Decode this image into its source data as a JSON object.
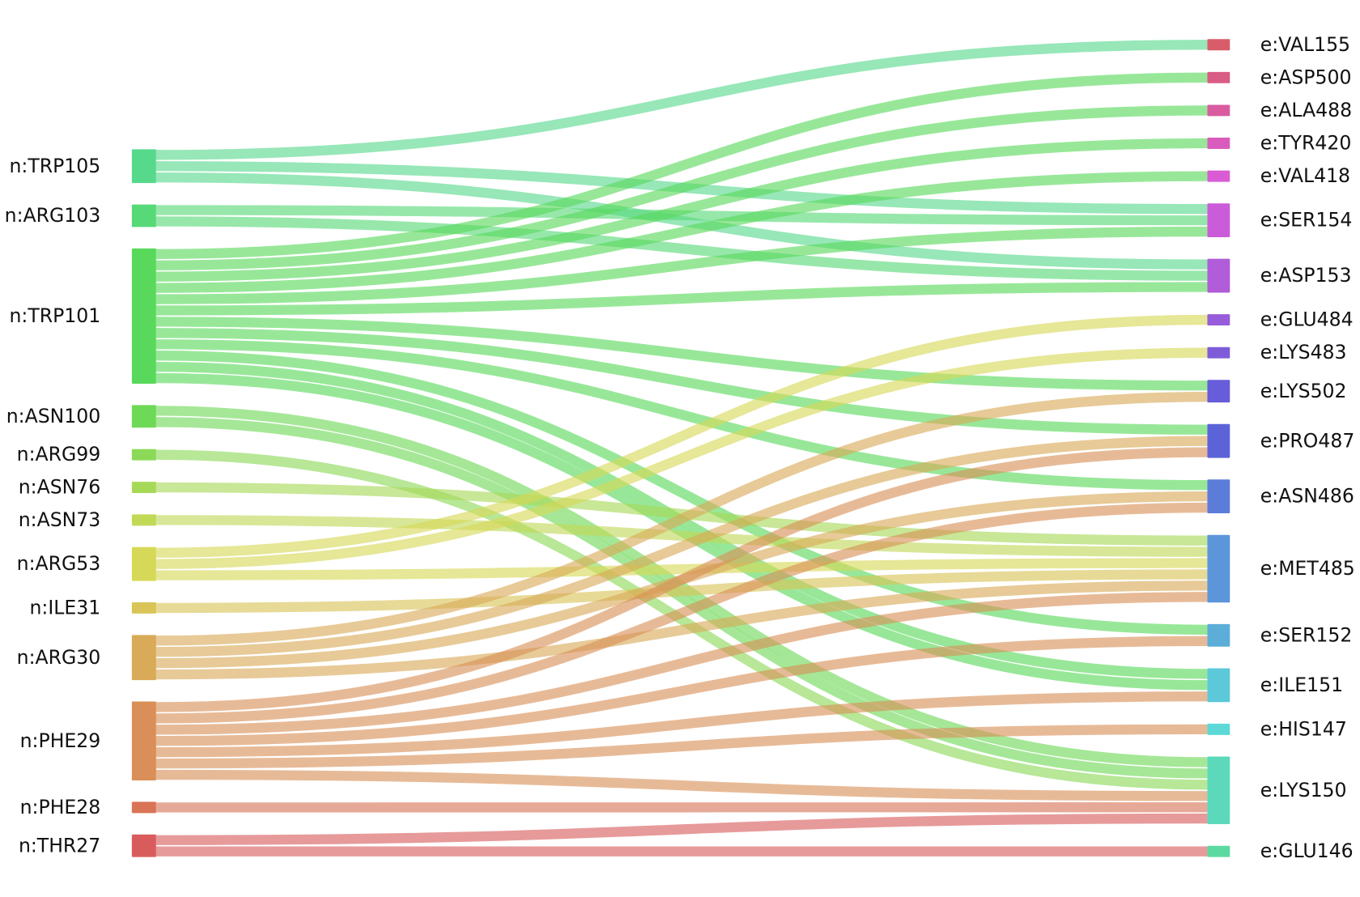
{
  "chart_data": {
    "type": "sankey",
    "nodes": [
      {
        "name": "n:TRP105",
        "color": "#57d98c"
      },
      {
        "name": "n:ARG103",
        "color": "#57d977"
      },
      {
        "name": "n:TRP101",
        "color": "#59d95b"
      },
      {
        "name": "n:ASN100",
        "color": "#6ed957"
      },
      {
        "name": "n:ARG99",
        "color": "#8bd957"
      },
      {
        "name": "n:ASN76",
        "color": "#a6d957"
      },
      {
        "name": "n:ASN73",
        "color": "#c0d957"
      },
      {
        "name": "n:ARG53",
        "color": "#d6d957"
      },
      {
        "name": "n:ILE31",
        "color": "#d9c457"
      },
      {
        "name": "n:ARG30",
        "color": "#d9aa57"
      },
      {
        "name": "n:PHE29",
        "color": "#d98f57"
      },
      {
        "name": "n:PHE28",
        "color": "#d97457"
      },
      {
        "name": "n:THR27",
        "color": "#d95c5c"
      },
      {
        "name": "e:VAL155",
        "color": "#d95c6a"
      },
      {
        "name": "e:ASP500",
        "color": "#d95c85"
      },
      {
        "name": "e:ALA488",
        "color": "#d95ca0"
      },
      {
        "name": "e:TYR420",
        "color": "#d95cbc"
      },
      {
        "name": "e:VAL418",
        "color": "#d95cd5"
      },
      {
        "name": "e:SER154",
        "color": "#cb5cd9"
      },
      {
        "name": "e:ASP153",
        "color": "#b15cd9"
      },
      {
        "name": "e:GLU484",
        "color": "#975cd9"
      },
      {
        "name": "e:LYS483",
        "color": "#7e5cd9"
      },
      {
        "name": "e:LYS502",
        "color": "#675cd9"
      },
      {
        "name": "e:PRO487",
        "color": "#5c63d9"
      },
      {
        "name": "e:ASN486",
        "color": "#5c7cd9"
      },
      {
        "name": "e:MET485",
        "color": "#5c95d9"
      },
      {
        "name": "e:SER152",
        "color": "#5caed9"
      },
      {
        "name": "e:ILE151",
        "color": "#5cc8d9"
      },
      {
        "name": "e:HIS147",
        "color": "#5cd9d6"
      },
      {
        "name": "e:LYS150",
        "color": "#5cd9bb"
      },
      {
        "name": "e:GLU146",
        "color": "#5cd9a1"
      }
    ],
    "links": [
      {
        "source": 0,
        "target": 13,
        "value": 1
      },
      {
        "source": 0,
        "target": 18,
        "value": 1
      },
      {
        "source": 0,
        "target": 19,
        "value": 1
      },
      {
        "source": 1,
        "target": 18,
        "value": 1
      },
      {
        "source": 1,
        "target": 19,
        "value": 1
      },
      {
        "source": 2,
        "target": 14,
        "value": 1
      },
      {
        "source": 2,
        "target": 15,
        "value": 1
      },
      {
        "source": 2,
        "target": 16,
        "value": 1
      },
      {
        "source": 2,
        "target": 17,
        "value": 1
      },
      {
        "source": 2,
        "target": 18,
        "value": 1
      },
      {
        "source": 2,
        "target": 19,
        "value": 1
      },
      {
        "source": 2,
        "target": 22,
        "value": 1
      },
      {
        "source": 2,
        "target": 23,
        "value": 1
      },
      {
        "source": 2,
        "target": 24,
        "value": 1
      },
      {
        "source": 2,
        "target": 26,
        "value": 1
      },
      {
        "source": 2,
        "target": 27,
        "value": 1
      },
      {
        "source": 2,
        "target": 27,
        "value": 1
      },
      {
        "source": 3,
        "target": 29,
        "value": 1
      },
      {
        "source": 3,
        "target": 29,
        "value": 1
      },
      {
        "source": 4,
        "target": 29,
        "value": 1
      },
      {
        "source": 5,
        "target": 25,
        "value": 1
      },
      {
        "source": 6,
        "target": 25,
        "value": 1
      },
      {
        "source": 7,
        "target": 20,
        "value": 1
      },
      {
        "source": 7,
        "target": 21,
        "value": 1
      },
      {
        "source": 7,
        "target": 25,
        "value": 1
      },
      {
        "source": 8,
        "target": 25,
        "value": 1
      },
      {
        "source": 9,
        "target": 22,
        "value": 1
      },
      {
        "source": 9,
        "target": 23,
        "value": 1
      },
      {
        "source": 9,
        "target": 24,
        "value": 1
      },
      {
        "source": 9,
        "target": 25,
        "value": 1
      },
      {
        "source": 10,
        "target": 23,
        "value": 1
      },
      {
        "source": 10,
        "target": 24,
        "value": 1
      },
      {
        "source": 10,
        "target": 25,
        "value": 1
      },
      {
        "source": 10,
        "target": 26,
        "value": 1
      },
      {
        "source": 10,
        "target": 27,
        "value": 1
      },
      {
        "source": 10,
        "target": 28,
        "value": 1
      },
      {
        "source": 10,
        "target": 29,
        "value": 1
      },
      {
        "source": 11,
        "target": 29,
        "value": 1
      },
      {
        "source": 12,
        "target": 29,
        "value": 1
      },
      {
        "source": 12,
        "target": 30,
        "value": 1
      }
    ]
  }
}
